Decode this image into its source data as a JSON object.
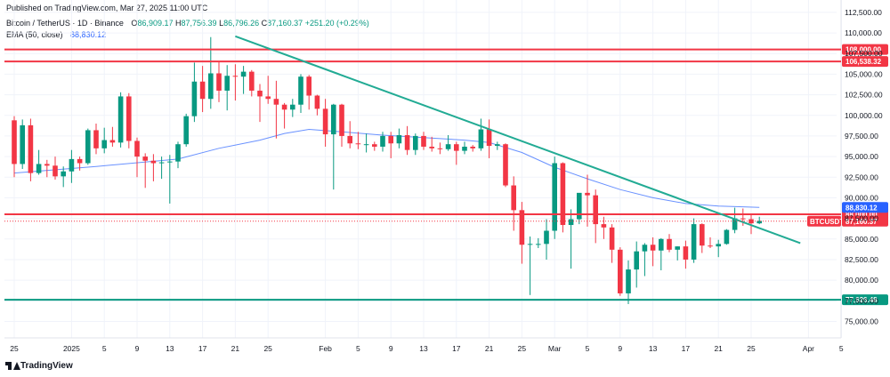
{
  "header": {
    "published": "Published on TradingView.com, Mar 27, 2025 11:00 UTC",
    "symbol": "Bitcoin / TetherUS · 1D · Binance",
    "open_label": "O",
    "open": "86,909.17",
    "high_label": "H",
    "high": "87,756.39",
    "low_label": "L",
    "low": "86,796.26",
    "close_label": "C",
    "close": "87,160.37",
    "change": "+251.20 (+0.29%)",
    "ema_label": "EMA (50, close)",
    "ema_value": "88,830.12"
  },
  "footer": {
    "logo_text": "TradingView"
  },
  "colors": {
    "up": "#089981",
    "down": "#f23645",
    "ema": "#2962ff",
    "trendline": "#22ab94",
    "resistance": "#f23645",
    "support": "#089981",
    "grid": "#f0f3fa"
  },
  "chart_data": {
    "type": "candlestick",
    "symbol_badge": "BTCUSDT",
    "ylim": [
      73000,
      114000
    ],
    "y_ticks": [
      "112,500.00",
      "110,000.00",
      "107,500.00",
      "105,000.00",
      "102,500.00",
      "100,000.00",
      "97,500.00",
      "95,000.00",
      "92,500.00",
      "90,000.00",
      "87,500.00",
      "85,000.00",
      "82,500.00",
      "80,000.00",
      "77,500.00",
      "75,000.00"
    ],
    "y_tick_values": [
      112500,
      110000,
      107500,
      105000,
      102500,
      100000,
      97500,
      95000,
      92500,
      90000,
      87500,
      85000,
      82500,
      80000,
      77500,
      75000
    ],
    "x_ticks": [
      {
        "label": "25",
        "day": 0
      },
      {
        "label": "2025",
        "day": 7
      },
      {
        "label": "5",
        "day": 11
      },
      {
        "label": "9",
        "day": 15
      },
      {
        "label": "13",
        "day": 19
      },
      {
        "label": "17",
        "day": 23
      },
      {
        "label": "21",
        "day": 27
      },
      {
        "label": "25",
        "day": 31
      },
      {
        "label": "Feb",
        "day": 38
      },
      {
        "label": "5",
        "day": 42
      },
      {
        "label": "9",
        "day": 46
      },
      {
        "label": "13",
        "day": 50
      },
      {
        "label": "17",
        "day": 54
      },
      {
        "label": "21",
        "day": 58
      },
      {
        "label": "25",
        "day": 62
      },
      {
        "label": "Mar",
        "day": 66
      },
      {
        "label": "5",
        "day": 70
      },
      {
        "label": "9",
        "day": 74
      },
      {
        "label": "13",
        "day": 78
      },
      {
        "label": "17",
        "day": 82
      },
      {
        "label": "21",
        "day": 86
      },
      {
        "label": "25",
        "day": 90
      },
      {
        "label": "Apr",
        "day": 97
      },
      {
        "label": "5",
        "day": 101
      }
    ],
    "candles": [
      [
        99400,
        99900,
        92500,
        94100
      ],
      [
        94100,
        99500,
        93500,
        98800
      ],
      [
        98800,
        99600,
        92000,
        93000
      ],
      [
        93000,
        95800,
        92800,
        94100
      ],
      [
        94100,
        94600,
        92500,
        93900
      ],
      [
        93900,
        95000,
        92200,
        92600
      ],
      [
        92600,
        93800,
        91300,
        93200
      ],
      [
        93200,
        95800,
        91800,
        94700
      ],
      [
        94700,
        95000,
        93300,
        94200
      ],
      [
        94200,
        98400,
        94000,
        98200
      ],
      [
        98200,
        99000,
        95300,
        96000
      ],
      [
        96000,
        98500,
        95400,
        97000
      ],
      [
        97000,
        98600,
        96200,
        96700
      ],
      [
        96700,
        102800,
        96100,
        102300
      ],
      [
        102300,
        102700,
        96000,
        96900
      ],
      [
        96900,
        97300,
        92500,
        95000
      ],
      [
        95000,
        95400,
        91200,
        94500
      ],
      [
        94500,
        95300,
        92000,
        94200
      ],
      [
        94200,
        95000,
        92300,
        94300
      ],
      [
        94300,
        95200,
        89300,
        94400
      ],
      [
        94400,
        96800,
        93600,
        96500
      ],
      [
        96500,
        100200,
        96200,
        99900
      ],
      [
        99900,
        106400,
        99200,
        104100
      ],
      [
        104100,
        106000,
        100400,
        102000
      ],
      [
        102000,
        109500,
        100800,
        105100
      ],
      [
        105100,
        106500,
        101600,
        103000
      ],
      [
        103000,
        106100,
        100600,
        104800
      ],
      [
        104800,
        106200,
        101800,
        104700
      ],
      [
        104700,
        106000,
        102600,
        105300
      ],
      [
        105300,
        105500,
        102300,
        103000
      ],
      [
        103000,
        103800,
        99200,
        102300
      ],
      [
        102300,
        104800,
        101400,
        102000
      ],
      [
        102000,
        104200,
        97200,
        101300
      ],
      [
        101300,
        101500,
        98400,
        100700
      ],
      [
        100700,
        102000,
        99800,
        101300
      ],
      [
        101300,
        105000,
        100300,
        104700
      ],
      [
        104700,
        104900,
        100700,
        102400
      ],
      [
        102400,
        102500,
        100000,
        100800
      ],
      [
        100800,
        102000,
        96200,
        97700
      ],
      [
        97700,
        101400,
        91000,
        101300
      ],
      [
        101300,
        101400,
        96200,
        97500
      ],
      [
        97500,
        99300,
        96000,
        96600
      ],
      [
        96600,
        98000,
        95900,
        96500
      ],
      [
        96500,
        97800,
        95500,
        96500
      ],
      [
        96500,
        96800,
        95700,
        96200
      ],
      [
        96200,
        98000,
        95600,
        97500
      ],
      [
        97500,
        98000,
        94800,
        96600
      ],
      [
        96600,
        98400,
        96000,
        97600
      ],
      [
        97600,
        98700,
        95200,
        95800
      ],
      [
        95800,
        97800,
        95200,
        97500
      ],
      [
        97500,
        98000,
        95800,
        96200
      ],
      [
        96200,
        97400,
        95600,
        96000
      ],
      [
        96000,
        96700,
        95300,
        95900
      ],
      [
        95900,
        97600,
        95700,
        96500
      ],
      [
        96500,
        96800,
        94000,
        95700
      ],
      [
        95700,
        96800,
        95300,
        96200
      ],
      [
        96200,
        96400,
        95600,
        96000
      ],
      [
        96000,
        99600,
        95700,
        98300
      ],
      [
        98300,
        99500,
        94800,
        96300
      ],
      [
        96300,
        96800,
        95800,
        96500
      ],
      [
        96500,
        96600,
        91300,
        91500
      ],
      [
        91500,
        92600,
        86000,
        88500
      ],
      [
        88500,
        89500,
        82000,
        84300
      ],
      [
        84300,
        85300,
        78200,
        84400
      ],
      [
        84400,
        85100,
        83900,
        84400
      ],
      [
        84400,
        87400,
        82500,
        86000
      ],
      [
        86000,
        95000,
        85000,
        94200
      ],
      [
        94200,
        94300,
        85800,
        86700
      ],
      [
        86700,
        88600,
        81400,
        87400
      ],
      [
        87400,
        90400,
        86800,
        90600
      ],
      [
        90600,
        92800,
        86500,
        90300
      ],
      [
        90300,
        91000,
        84500,
        86800
      ],
      [
        86800,
        87700,
        85000,
        86400
      ],
      [
        86400,
        86800,
        82100,
        83700
      ],
      [
        83700,
        84000,
        78100,
        78400
      ],
      [
        78400,
        82400,
        77100,
        81300
      ],
      [
        81300,
        84700,
        79100,
        83500
      ],
      [
        83500,
        84500,
        80500,
        84300
      ],
      [
        84300,
        85200,
        81700,
        83600
      ],
      [
        83600,
        85100,
        81200,
        85000
      ],
      [
        85000,
        85600,
        83400,
        83700
      ],
      [
        83700,
        84100,
        82400,
        84100
      ],
      [
        84100,
        84800,
        81400,
        82500
      ],
      [
        82500,
        87500,
        82100,
        86800
      ],
      [
        86800,
        86900,
        83300,
        84200
      ],
      [
        84200,
        85200,
        83900,
        84100
      ],
      [
        84100,
        84900,
        82800,
        84400
      ],
      [
        84400,
        86200,
        84300,
        86100
      ],
      [
        86100,
        88800,
        85700,
        87500
      ],
      [
        87500,
        88700,
        86600,
        87400
      ],
      [
        87400,
        88000,
        85600,
        86900
      ],
      [
        86900,
        87700,
        86800,
        87200
      ]
    ],
    "ema": [
      [
        0,
        93000
      ],
      [
        10,
        93800
      ],
      [
        20,
        94700
      ],
      [
        25,
        96000
      ],
      [
        30,
        97000
      ],
      [
        33,
        97800
      ],
      [
        36,
        98300
      ],
      [
        40,
        98000
      ],
      [
        45,
        97600
      ],
      [
        50,
        97300
      ],
      [
        55,
        97000
      ],
      [
        58,
        96700
      ],
      [
        62,
        95500
      ],
      [
        66,
        93700
      ],
      [
        70,
        92300
      ],
      [
        74,
        91000
      ],
      [
        78,
        90000
      ],
      [
        82,
        89300
      ],
      [
        86,
        89000
      ],
      [
        89,
        88900
      ],
      [
        91,
        88830
      ]
    ],
    "price_lines": [
      {
        "label": "108,000.00",
        "value": 108000,
        "color": "#f23645"
      },
      {
        "label": "106,538.32",
        "value": 106538.32,
        "color": "#f23645"
      },
      {
        "label": "88,000.00",
        "value": 88000,
        "color": "#f23645"
      },
      {
        "label": "77,626.48",
        "value": 77626.48,
        "color": "#089981"
      }
    ],
    "trendline": {
      "start": [
        27,
        109600
      ],
      "end": [
        96,
        84500
      ],
      "color": "#22ab94"
    },
    "ema_badge": {
      "label": "88,830.12",
      "value": 88830.12
    },
    "last_price": {
      "label": "87,160.37",
      "value": 87160.37
    }
  }
}
